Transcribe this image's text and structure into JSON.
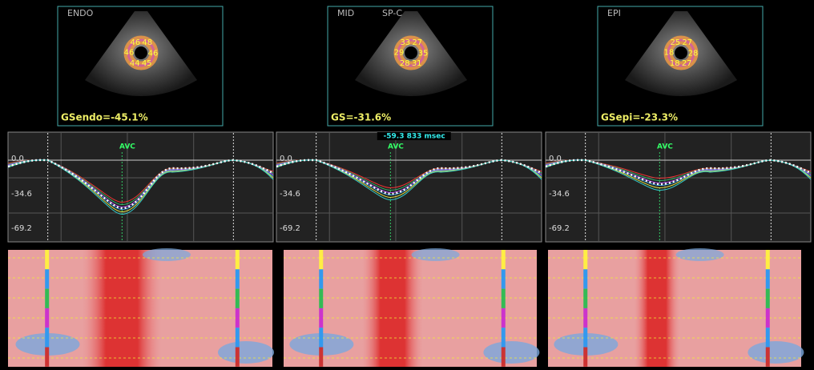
{
  "panels": [
    {
      "label": "ENDO",
      "sublabel": null,
      "gs": "GSendo=-45.1%",
      "segments": [
        "46",
        "48",
        "46",
        "45",
        "44",
        "46"
      ],
      "ticks": [
        "0.0",
        "-34.6",
        "-69.2"
      ],
      "marker": "AVC"
    },
    {
      "label": "MID",
      "sublabel": "SP-C",
      "gs": "GS=-31.6%",
      "segments": [
        "33",
        "27",
        "35",
        "31",
        "28",
        "29"
      ],
      "ticks": [
        "0.0",
        "-34.6",
        "-69.2"
      ],
      "marker": "AVC",
      "cursor": "-59.3  833 msec"
    },
    {
      "label": "EPI",
      "sublabel": null,
      "gs": "GSepi=-23.3%",
      "segments": [
        "25",
        "27",
        "28",
        "27",
        "18",
        "18"
      ],
      "ticks": [
        "0.0",
        "-34.6",
        "-69.2"
      ],
      "marker": "AVC"
    }
  ]
}
